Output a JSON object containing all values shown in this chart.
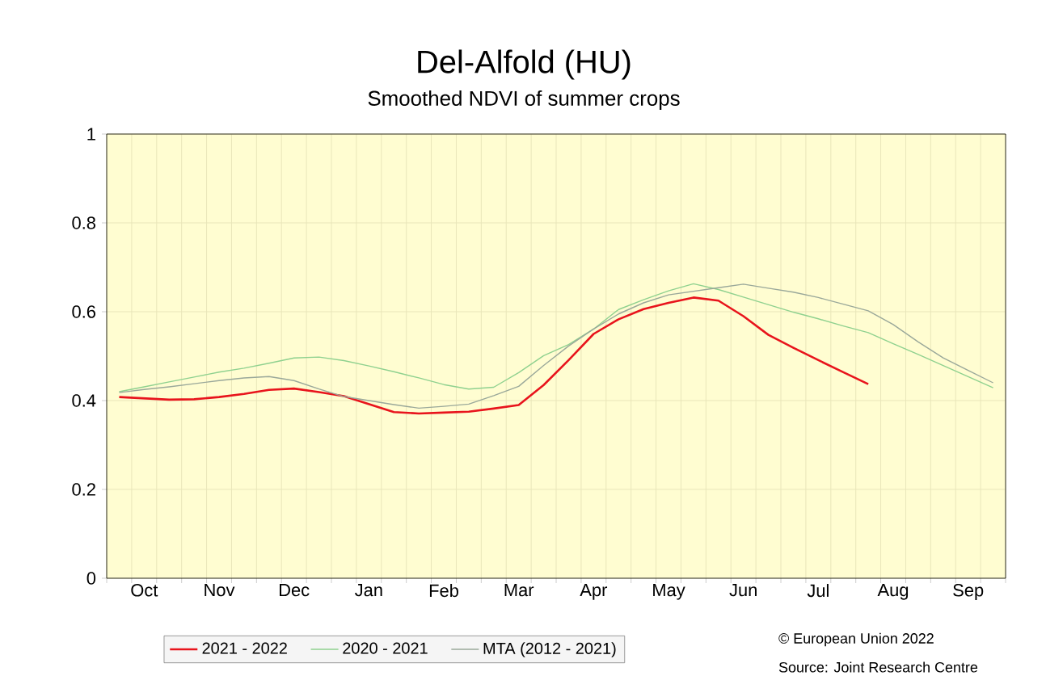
{
  "chart_data": {
    "type": "line",
    "title": "Del-Alfold (HU)",
    "subtitle": "Smoothed NDVI of summer crops",
    "categories": [
      null,
      "Oct",
      null,
      null,
      "Nov",
      null,
      null,
      "Dec",
      null,
      null,
      "Jan",
      null,
      null,
      "Feb",
      null,
      null,
      "Mar",
      null,
      null,
      "Apr",
      null,
      null,
      "May",
      null,
      null,
      "Jun",
      null,
      null,
      "Jul",
      null,
      null,
      "Aug",
      null,
      null,
      "Sep",
      null
    ],
    "ylim": [
      0,
      1
    ],
    "yticks": [
      0,
      0.2,
      0.4,
      0.6,
      0.8,
      1
    ],
    "grid": true,
    "legend": "bottom",
    "marker": "none",
    "line_style": "solid",
    "annotations": [
      "© European Union 2022",
      "Source: Joint Research Centre"
    ],
    "series": [
      {
        "name": "2021 - 2022",
        "color": "#e8141c",
        "values": [
          0.408,
          0.405,
          0.402,
          0.403,
          0.408,
          0.415,
          0.424,
          0.427,
          0.419,
          0.41,
          0.392,
          0.374,
          0.371,
          0.373,
          0.375,
          0.382,
          0.39,
          0.435,
          0.491,
          0.55,
          0.583,
          0.606,
          0.62,
          0.632,
          0.625,
          0.59,
          0.548,
          0.519,
          0.491,
          0.464,
          0.437,
          null,
          null,
          null,
          null,
          null
        ]
      },
      {
        "name": "2020 - 2021",
        "color": "#8fd18f",
        "values": [
          0.42,
          0.431,
          0.442,
          0.453,
          0.464,
          0.473,
          0.484,
          0.496,
          0.498,
          0.49,
          0.478,
          0.465,
          0.451,
          0.436,
          0.426,
          0.43,
          0.463,
          0.501,
          0.526,
          0.561,
          0.605,
          0.627,
          0.647,
          0.663,
          0.65,
          0.633,
          0.616,
          0.599,
          0.584,
          0.568,
          0.553,
          0.528,
          0.504,
          0.479,
          0.454,
          0.429
        ]
      },
      {
        "name": "MTA (2012 - 2021)",
        "color": "#9aa89a",
        "values": [
          0.418,
          0.425,
          0.431,
          0.438,
          0.445,
          0.451,
          0.454,
          0.445,
          0.426,
          0.409,
          0.4,
          0.391,
          0.383,
          0.387,
          0.392,
          0.411,
          0.432,
          0.479,
          0.523,
          0.561,
          0.595,
          0.62,
          0.638,
          0.646,
          0.654,
          0.662,
          0.653,
          0.644,
          0.632,
          0.617,
          0.602,
          0.571,
          0.532,
          0.496,
          0.468,
          0.44
        ]
      }
    ]
  }
}
